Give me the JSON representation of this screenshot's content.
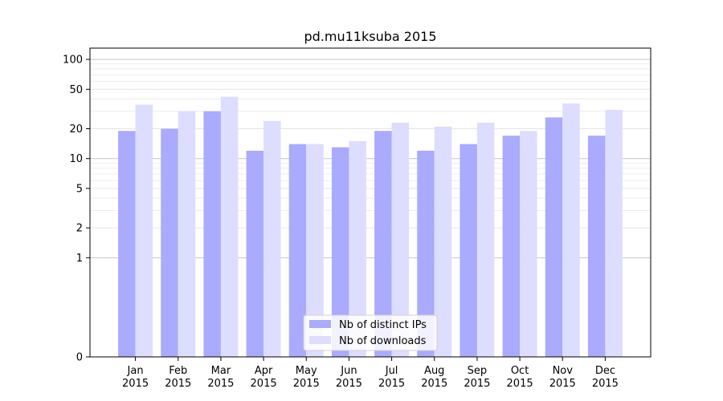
{
  "chart_data": {
    "type": "bar",
    "title": "pd.mu11ksuba 2015",
    "xlabel": "",
    "ylabel": "",
    "y_scale": "symlog",
    "y_ticks": [
      0,
      1,
      2,
      5,
      10,
      20,
      50,
      100
    ],
    "ylim": [
      0,
      130
    ],
    "grid": "horizontal",
    "legend_position": "bottom-center",
    "categories": [
      [
        "Jan",
        "2015"
      ],
      [
        "Feb",
        "2015"
      ],
      [
        "Mar",
        "2015"
      ],
      [
        "Apr",
        "2015"
      ],
      [
        "May",
        "2015"
      ],
      [
        "Jun",
        "2015"
      ],
      [
        "Jul",
        "2015"
      ],
      [
        "Aug",
        "2015"
      ],
      [
        "Sep",
        "2015"
      ],
      [
        "Oct",
        "2015"
      ],
      [
        "Nov",
        "2015"
      ],
      [
        "Dec",
        "2015"
      ]
    ],
    "series": [
      {
        "name": "Nb of distinct IPs",
        "color": "#aaaaff",
        "values": [
          19,
          20,
          30,
          12,
          14,
          13,
          19,
          12,
          14,
          17,
          26,
          17
        ]
      },
      {
        "name": "Nb of downloads",
        "color": "#ddddff",
        "values": [
          35,
          30,
          42,
          24,
          14,
          15,
          23,
          21,
          23,
          19,
          36,
          31
        ]
      }
    ]
  }
}
